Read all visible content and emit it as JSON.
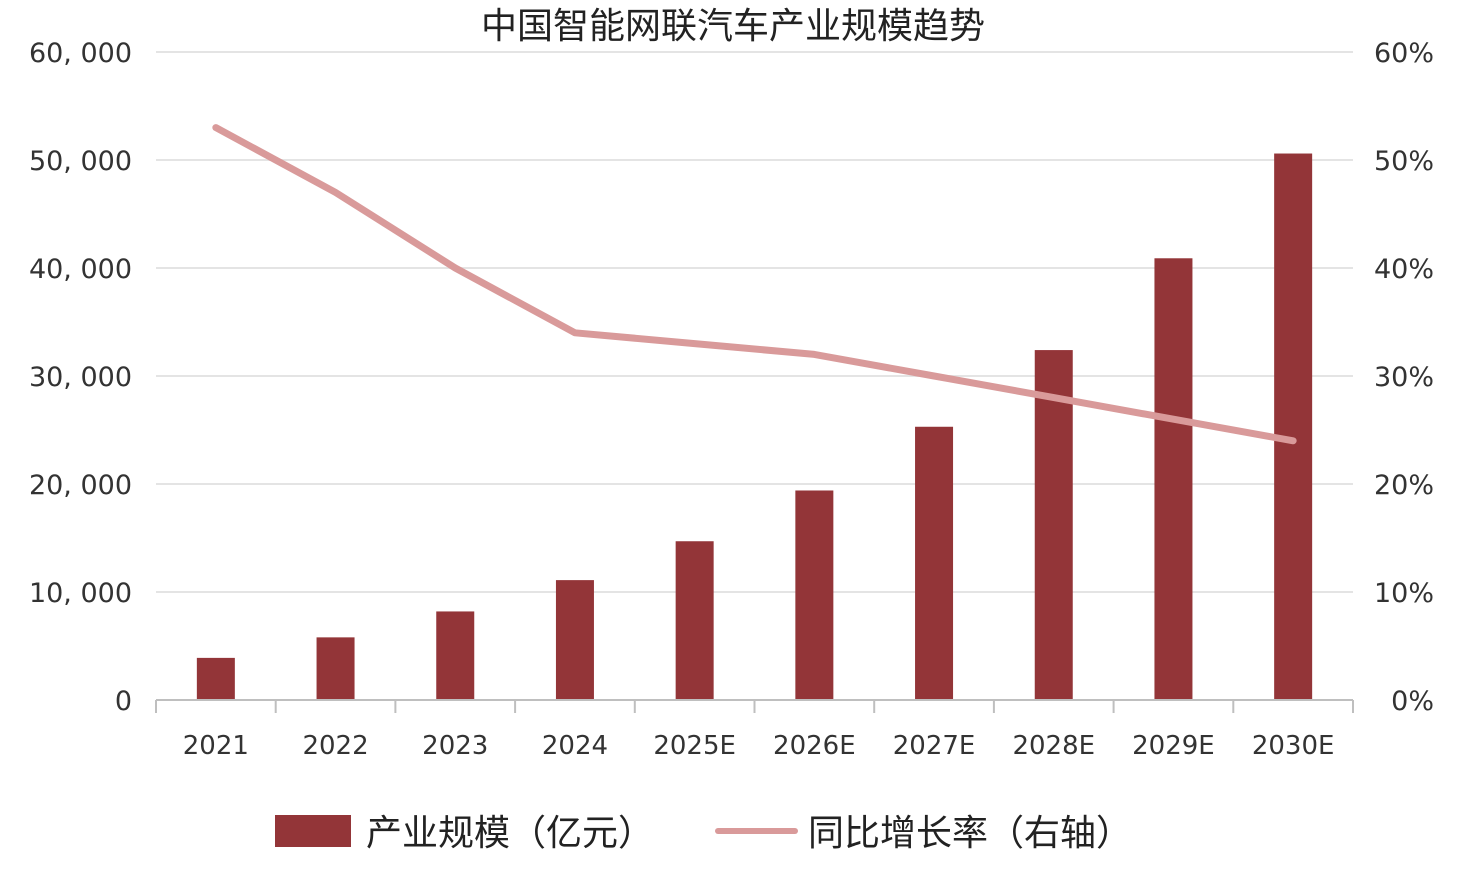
{
  "chart_data": {
    "type": "bar",
    "title": "中国智能网联汽车产业规模趋势",
    "categories": [
      "2021",
      "2022",
      "2023",
      "2024",
      "2025E",
      "2026E",
      "2027E",
      "2028E",
      "2029E",
      "2030E"
    ],
    "series": [
      {
        "name": "产业规模（亿元）",
        "type": "bar",
        "axis": "left",
        "color": "#933538",
        "values": [
          3900,
          5800,
          8200,
          11100,
          14700,
          19400,
          25300,
          32400,
          40900,
          50600
        ]
      },
      {
        "name": "同比增长率（右轴）",
        "type": "line",
        "axis": "right",
        "color": "#d99a9a",
        "values": [
          53,
          47,
          40,
          34,
          33,
          32,
          30,
          28,
          26,
          24
        ]
      }
    ],
    "yleft": {
      "ylim": [
        0,
        60000
      ],
      "ticks": [
        0,
        10000,
        20000,
        30000,
        40000,
        50000,
        60000
      ],
      "tick_labels": [
        "0",
        "10, 000",
        "20, 000",
        "30, 000",
        "40, 000",
        "50, 000",
        "60, 000"
      ]
    },
    "yright": {
      "ylim": [
        0,
        60
      ],
      "ticks": [
        0,
        10,
        20,
        30,
        40,
        50,
        60
      ],
      "tick_labels": [
        "0%",
        "10%",
        "20%",
        "30%",
        "40%",
        "50%",
        "60%"
      ]
    },
    "grid": true,
    "grid_color": "#e4e4e4",
    "axis_color": "#bfbfbf",
    "legend_position": "bottom"
  }
}
